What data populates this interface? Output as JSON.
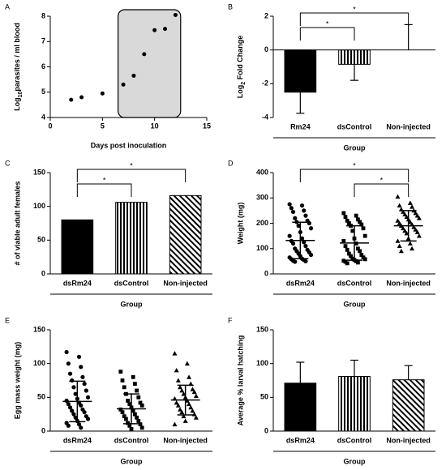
{
  "chart_data": [
    {
      "type": "scatter",
      "panel": "A",
      "ylabel": [
        "Log",
        "10",
        "parasites / ml blood"
      ],
      "xlabel": "Days post inoculation",
      "x": [
        2,
        3,
        5,
        7,
        8,
        9,
        10,
        11,
        12
      ],
      "values": [
        4.7,
        4.8,
        4.95,
        5.3,
        5.65,
        6.5,
        7.45,
        7.5,
        8.05
      ],
      "xlim": [
        0,
        15
      ],
      "xticks": [
        0,
        5,
        10,
        15
      ],
      "ylim": [
        4,
        8
      ],
      "yticks": [
        4,
        5,
        6,
        7,
        8
      ],
      "color": "#000000"
    },
    {
      "type": "bar",
      "panel": "B",
      "ylabel": [
        "Log",
        "2",
        " Fold Change"
      ],
      "xlabel": "Group",
      "categories": [
        "Rm24",
        "dsControl",
        "Non-injected"
      ],
      "values": [
        -2.5,
        -0.85,
        0
      ],
      "errors": [
        1.25,
        0.95,
        1.5
      ],
      "fills": [
        "black",
        "vertical-stripes",
        "white"
      ],
      "ylim": [
        -4,
        2
      ],
      "yticks": [
        -4,
        -2,
        0,
        2
      ],
      "significance": [
        {
          "between": [
            "Rm24",
            "Non-injected"
          ],
          "label": "*"
        },
        {
          "between": [
            "Rm24",
            "dsControl"
          ],
          "label": "*"
        }
      ]
    },
    {
      "type": "bar",
      "panel": "C",
      "ylabel": "# of viable adult females",
      "xlabel": "Group",
      "categories": [
        "dsRm24",
        "dsControl",
        "Non-injected"
      ],
      "values": [
        80,
        106,
        116
      ],
      "fills": [
        "black",
        "vertical-stripes",
        "diagonal"
      ],
      "ylim": [
        0,
        150
      ],
      "yticks": [
        0,
        50,
        100,
        150
      ],
      "significance": [
        {
          "between": [
            "dsRm24",
            "Non-injected"
          ],
          "label": "*"
        },
        {
          "between": [
            "dsRm24",
            "dsControl"
          ],
          "label": "*"
        }
      ]
    },
    {
      "type": "dotplot",
      "panel": "D",
      "ylabel": "Weight (mg)",
      "xlabel": "Group",
      "categories": [
        "dsRm24",
        "dsControl",
        "Non-injected"
      ],
      "markers": [
        "circle",
        "square",
        "triangle"
      ],
      "points": [
        [
          275,
          270,
          260,
          250,
          245,
          230,
          220,
          210,
          205,
          200,
          190,
          180,
          165,
          150,
          140,
          130,
          125,
          120,
          110,
          100,
          95,
          90,
          85,
          80,
          75,
          70,
          65,
          60,
          58,
          55,
          52,
          50,
          48
        ],
        [
          240,
          230,
          225,
          215,
          210,
          205,
          200,
          195,
          190,
          180,
          170,
          150,
          140,
          130,
          120,
          110,
          100,
          95,
          90,
          80,
          75,
          70,
          65,
          60,
          58,
          55,
          52,
          50,
          48,
          45,
          42
        ],
        [
          305,
          280,
          270,
          265,
          255,
          250,
          245,
          240,
          235,
          230,
          225,
          220,
          215,
          210,
          205,
          200,
          195,
          190,
          185,
          180,
          175,
          170,
          165,
          160,
          150,
          140,
          130,
          120,
          110,
          100,
          90
        ]
      ],
      "means": [
        132,
        122,
        190
      ],
      "sd": [
        72,
        68,
        60
      ],
      "ylim": [
        0,
        400
      ],
      "yticks": [
        0,
        100,
        200,
        300,
        400
      ],
      "significance": [
        {
          "between": [
            "dsRm24",
            "Non-injected"
          ],
          "label": "*"
        },
        {
          "between": [
            "dsControl",
            "Non-injected"
          ],
          "label": "*"
        }
      ]
    },
    {
      "type": "dotplot",
      "panel": "E",
      "ylabel": "Egg mass weight (mg)",
      "xlabel": "Group",
      "categories": [
        "dsRm24",
        "dsControl",
        "Non-injected"
      ],
      "markers": [
        "circle",
        "square",
        "triangle"
      ],
      "points": [
        [
          117,
          110,
          100,
          95,
          85,
          80,
          75,
          70,
          65,
          60,
          55,
          50,
          48,
          45,
          42,
          40,
          38,
          35,
          32,
          30,
          28,
          25,
          22,
          20,
          18,
          15,
          12,
          10,
          8,
          5
        ],
        [
          88,
          80,
          75,
          70,
          65,
          60,
          55,
          50,
          45,
          42,
          40,
          38,
          35,
          32,
          30,
          28,
          25,
          22,
          20,
          18,
          15,
          12,
          10,
          8,
          5,
          3
        ],
        [
          115,
          100,
          90,
          80,
          75,
          70,
          65,
          62,
          60,
          58,
          55,
          52,
          50,
          48,
          45,
          42,
          40,
          38,
          35,
          32,
          30,
          28,
          25,
          22,
          20,
          15,
          10
        ]
      ],
      "means": [
        44,
        33,
        46
      ],
      "sd": [
        30,
        22,
        22
      ],
      "ylim": [
        0,
        150
      ],
      "yticks": [
        0,
        50,
        100,
        150
      ]
    },
    {
      "type": "bar",
      "panel": "F",
      "ylabel": "Average % larval hatching",
      "xlabel": "Group",
      "categories": [
        "dsRm24",
        "dsControl",
        "Non-injected"
      ],
      "values": [
        71,
        81,
        76
      ],
      "errors": [
        31,
        24,
        21
      ],
      "fills": [
        "black",
        "vertical-stripes",
        "diagonal"
      ],
      "ylim": [
        0,
        150
      ],
      "yticks": [
        0,
        50,
        100,
        150
      ]
    }
  ]
}
